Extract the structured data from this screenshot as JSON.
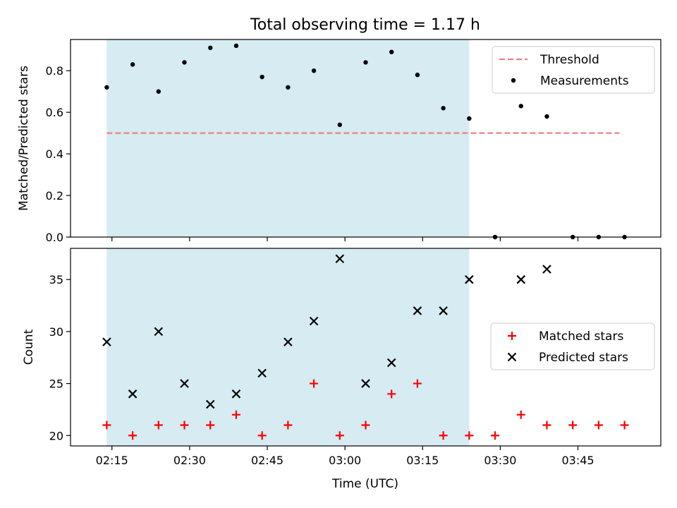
{
  "chart_data": [
    {
      "type": "scatter",
      "title": "Total observing time = 1.17 h",
      "xlabel": "",
      "ylabel": "Matched/Predicted stars",
      "ylim": [
        0,
        0.95
      ],
      "yticks": [
        "0.0",
        "0.2",
        "0.4",
        "0.6",
        "0.8"
      ],
      "highlight_x_range": [
        "02:14",
        "03:24"
      ],
      "highlight_color": "#add8e6",
      "legend_position": "top-right",
      "series": [
        {
          "name": "Threshold",
          "kind": "dashed-line",
          "color": "#f08080",
          "x": [
            "02:14",
            "03:53"
          ],
          "y": [
            0.5,
            0.5
          ]
        },
        {
          "name": "Measurements",
          "kind": "dot",
          "color": "#000000",
          "x": [
            "02:14",
            "02:19",
            "02:24",
            "02:29",
            "02:34",
            "02:39",
            "02:44",
            "02:49",
            "02:54",
            "02:59",
            "03:04",
            "03:09",
            "03:14",
            "03:19",
            "03:24",
            "03:29",
            "03:34",
            "03:39",
            "03:44",
            "03:49",
            "03:54"
          ],
          "y": [
            0.72,
            0.83,
            0.7,
            0.84,
            0.91,
            0.92,
            0.77,
            0.72,
            0.8,
            0.54,
            0.84,
            0.89,
            0.78,
            0.62,
            0.57,
            0.0,
            0.63,
            0.58,
            0.0,
            0.0,
            0.0
          ]
        }
      ]
    },
    {
      "type": "scatter",
      "title": "",
      "xlabel": "Time (UTC)",
      "ylabel": "Count",
      "ylim": [
        19,
        38
      ],
      "yticks": [
        "20",
        "25",
        "30",
        "35"
      ],
      "xticks": [
        "02:15",
        "02:30",
        "02:45",
        "03:00",
        "03:15",
        "03:30",
        "03:45"
      ],
      "highlight_x_range": [
        "02:14",
        "03:24"
      ],
      "highlight_color": "#add8e6",
      "legend_position": "center-right",
      "series": [
        {
          "name": "Matched stars",
          "kind": "plus",
          "color": "#ff0000",
          "x": [
            "02:14",
            "02:19",
            "02:24",
            "02:29",
            "02:34",
            "02:39",
            "02:44",
            "02:49",
            "02:54",
            "02:59",
            "03:04",
            "03:09",
            "03:14",
            "03:19",
            "03:24",
            "03:29",
            "03:34",
            "03:39",
            "03:44",
            "03:49",
            "03:54"
          ],
          "y": [
            21,
            20,
            21,
            21,
            21,
            22,
            20,
            21,
            25,
            20,
            21,
            24,
            25,
            20,
            20,
            20,
            22,
            21,
            21,
            21,
            21
          ]
        },
        {
          "name": "Predicted stars",
          "kind": "x",
          "color": "#000000",
          "x": [
            "02:14",
            "02:19",
            "02:24",
            "02:29",
            "02:34",
            "02:39",
            "02:44",
            "02:49",
            "02:54",
            "02:59",
            "03:04",
            "03:09",
            "03:14",
            "03:19",
            "03:24",
            "03:34",
            "03:39"
          ],
          "y": [
            29,
            24,
            30,
            25,
            23,
            24,
            26,
            29,
            31,
            37,
            25,
            27,
            32,
            32,
            35,
            35,
            36
          ]
        }
      ]
    }
  ]
}
